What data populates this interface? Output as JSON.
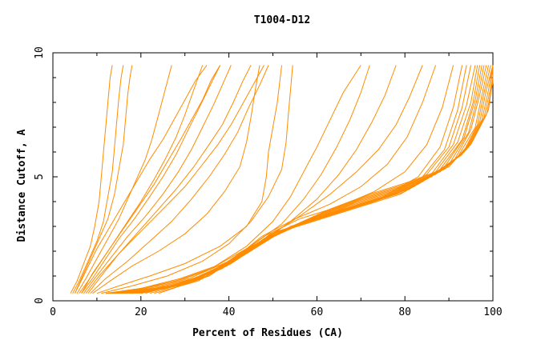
{
  "chart_data": {
    "type": "line",
    "title": "T1004-D12",
    "xlabel": "Percent of Residues (CA)",
    "ylabel": "Distance Cutoff, A",
    "xlim": [
      0,
      100
    ],
    "ylim": [
      0,
      10
    ],
    "x_ticks": [
      "0",
      "20",
      "40",
      "60",
      "80",
      "100"
    ],
    "y_ticks": [
      "0",
      "5",
      "10"
    ],
    "grid": false,
    "legend": "none",
    "series_color": "#ff8c00",
    "series": [
      {
        "x": [
          4.0,
          5.5,
          7.0,
          8.5,
          9.5,
          10.5,
          11.0,
          11.5,
          12.0,
          12.5,
          13.0,
          13.5
        ],
        "y": [
          0.3,
          0.8,
          1.5,
          2.2,
          3.0,
          4.0,
          5.0,
          6.0,
          7.0,
          8.0,
          9.0,
          9.5
        ]
      },
      {
        "x": [
          4.5,
          6.0,
          8.0,
          10.0,
          11.5,
          12.5,
          13.5,
          14.0,
          14.5,
          15.0,
          15.5,
          16.0
        ],
        "y": [
          0.3,
          0.8,
          1.6,
          2.4,
          3.2,
          4.2,
          5.2,
          6.2,
          7.2,
          8.2,
          9.0,
          9.5
        ]
      },
      {
        "x": [
          5.0,
          6.5,
          8.5,
          10.5,
          12.5,
          14.0,
          15.0,
          16.0,
          16.5,
          17.0,
          17.5,
          18.0
        ],
        "y": [
          0.3,
          0.9,
          1.7,
          2.5,
          3.3,
          4.3,
          5.3,
          6.3,
          7.3,
          8.3,
          9.0,
          9.5
        ]
      },
      {
        "x": [
          5.5,
          7.5,
          10.0,
          12.5,
          15.0,
          17.0,
          19.0,
          21.0,
          22.5,
          24.0,
          25.5,
          27.0
        ],
        "y": [
          0.3,
          0.9,
          1.7,
          2.5,
          3.3,
          4.1,
          4.9,
          5.7,
          6.5,
          7.5,
          8.5,
          9.5
        ]
      },
      {
        "x": [
          6.0,
          8.0,
          11.0,
          14.0,
          17.0,
          20.0,
          23.0,
          25.5,
          28.0,
          30.0,
          32.0,
          34.0
        ],
        "y": [
          0.3,
          0.8,
          1.6,
          2.4,
          3.2,
          4.0,
          4.9,
          5.7,
          6.6,
          7.5,
          8.5,
          9.5
        ]
      },
      {
        "x": [
          6.5,
          9.0,
          12.0,
          15.0,
          18.5,
          22.0,
          25.0,
          28.0,
          30.5,
          33.0,
          35.5,
          38.0
        ],
        "y": [
          0.3,
          0.9,
          1.7,
          2.5,
          3.3,
          4.2,
          5.0,
          5.9,
          6.8,
          7.7,
          8.6,
          9.5
        ]
      },
      {
        "x": [
          7.0,
          9.5,
          13.0,
          17.0,
          21.0,
          25.0,
          28.5,
          31.5,
          34.0,
          36.5,
          38.5,
          40.5
        ],
        "y": [
          0.3,
          0.9,
          1.7,
          2.6,
          3.4,
          4.3,
          5.2,
          6.1,
          7.0,
          7.9,
          8.7,
          9.5
        ]
      },
      {
        "x": [
          7.5,
          10.5,
          14.5,
          19.0,
          23.5,
          28.0,
          32.0,
          35.5,
          38.5,
          41.0,
          43.0,
          45.0
        ],
        "y": [
          0.3,
          1.0,
          1.8,
          2.7,
          3.6,
          4.5,
          5.4,
          6.3,
          7.1,
          8.0,
          8.8,
          9.5
        ]
      },
      {
        "x": [
          8.0,
          11.0,
          15.0,
          20.0,
          25.0,
          30.0,
          34.0,
          37.5,
          40.5,
          43.0,
          45.5,
          48.0
        ],
        "y": [
          0.3,
          1.0,
          1.9,
          2.8,
          3.7,
          4.6,
          5.5,
          6.3,
          7.1,
          7.9,
          8.7,
          9.5
        ]
      },
      {
        "x": [
          6.5,
          9.0,
          12.5,
          16.0,
          19.5,
          23.0,
          26.0,
          29.0,
          31.5,
          34.0,
          36.0,
          38.0
        ],
        "y": [
          0.3,
          1.1,
          2.0,
          2.9,
          3.8,
          4.7,
          5.6,
          6.5,
          7.3,
          8.1,
          8.9,
          9.5
        ]
      },
      {
        "x": [
          5.0,
          7.5,
          10.0,
          13.0,
          16.0,
          19.0,
          22.0,
          25.0,
          27.5,
          30.0,
          32.5,
          35.0
        ],
        "y": [
          0.3,
          1.2,
          2.1,
          3.0,
          3.9,
          4.8,
          5.7,
          6.5,
          7.3,
          8.1,
          8.9,
          9.5
        ]
      },
      {
        "x": [
          8.5,
          12.0,
          17.0,
          22.0,
          27.0,
          31.5,
          35.5,
          39.0,
          42.0,
          44.5,
          47.0,
          49.0
        ],
        "y": [
          0.3,
          0.9,
          1.6,
          2.4,
          3.2,
          4.1,
          5.0,
          5.9,
          6.8,
          7.8,
          8.7,
          9.5
        ]
      },
      {
        "x": [
          9.0,
          13.0,
          18.0,
          24.0,
          30.0,
          35.0,
          39.0,
          42.5,
          44.0,
          45.0,
          46.0,
          47.0
        ],
        "y": [
          0.3,
          0.8,
          1.4,
          2.0,
          2.7,
          3.5,
          4.4,
          5.4,
          6.4,
          7.4,
          8.5,
          9.5
        ]
      },
      {
        "x": [
          10.0,
          15.0,
          22.0,
          30.0,
          38.0,
          44.0,
          47.5,
          48.5,
          49.0,
          50.0,
          51.0,
          52.0
        ],
        "y": [
          0.3,
          0.6,
          1.0,
          1.5,
          2.2,
          3.0,
          4.0,
          5.0,
          6.0,
          7.0,
          8.0,
          9.5
        ]
      },
      {
        "x": [
          11.0,
          18.0,
          26.0,
          34.0,
          40.0,
          45.0,
          49.0,
          52.0,
          53.0,
          53.5,
          54.0,
          54.5
        ],
        "y": [
          0.3,
          0.6,
          1.0,
          1.6,
          2.3,
          3.2,
          4.2,
          5.3,
          6.4,
          7.5,
          8.5,
          9.5
        ]
      },
      {
        "x": [
          12.0,
          20.0,
          28.0,
          36.0,
          44.0,
          50.0,
          54.0,
          57.0,
          60.0,
          63.0,
          66.0,
          70.0
        ],
        "y": [
          0.3,
          0.5,
          0.8,
          1.3,
          2.2,
          3.2,
          4.2,
          5.2,
          6.2,
          7.3,
          8.4,
          9.5
        ]
      },
      {
        "x": [
          12.0,
          20.0,
          29.0,
          37.0,
          45.0,
          52.0,
          57.0,
          61.0,
          64.5,
          67.5,
          70.0,
          72.0
        ],
        "y": [
          0.3,
          0.5,
          0.9,
          1.4,
          2.2,
          3.1,
          4.1,
          5.1,
          6.2,
          7.3,
          8.4,
          9.5
        ]
      },
      {
        "x": [
          12.5,
          21.0,
          30.0,
          39.0,
          47.0,
          54.0,
          60.0,
          65.0,
          69.0,
          72.5,
          75.5,
          78.0
        ],
        "y": [
          0.3,
          0.5,
          0.9,
          1.5,
          2.3,
          3.2,
          4.1,
          5.1,
          6.1,
          7.2,
          8.3,
          9.5
        ]
      },
      {
        "x": [
          13.0,
          22.0,
          31.0,
          40.0,
          48.0,
          56.0,
          63.0,
          69.0,
          74.0,
          78.0,
          81.0,
          84.0
        ],
        "y": [
          0.3,
          0.5,
          0.9,
          1.6,
          2.5,
          3.4,
          4.3,
          5.2,
          6.1,
          7.1,
          8.2,
          9.5
        ]
      },
      {
        "x": [
          13.5,
          23.0,
          32.0,
          40.5,
          47.5,
          55.0,
          63.0,
          70.0,
          76.0,
          80.5,
          84.0,
          87.0
        ],
        "y": [
          0.3,
          0.5,
          0.9,
          1.6,
          2.6,
          3.3,
          3.9,
          4.6,
          5.5,
          6.6,
          8.0,
          9.5
        ]
      },
      {
        "x": [
          14.0,
          24.0,
          33.0,
          41.0,
          48.0,
          56.0,
          65.0,
          73.0,
          80.0,
          85.0,
          88.5,
          91.0
        ],
        "y": [
          0.3,
          0.5,
          0.9,
          1.7,
          2.6,
          3.3,
          3.8,
          4.4,
          5.2,
          6.3,
          7.8,
          9.5
        ]
      },
      {
        "x": [
          14.5,
          25.0,
          34.0,
          42.0,
          49.0,
          57.0,
          66.0,
          75.0,
          83.0,
          88.0,
          91.0,
          93.0
        ],
        "y": [
          0.3,
          0.5,
          0.9,
          1.8,
          2.6,
          3.2,
          3.7,
          4.2,
          5.0,
          6.2,
          7.8,
          9.5
        ]
      },
      {
        "x": [
          15.0,
          25.5,
          35.0,
          42.5,
          49.5,
          58.0,
          67.0,
          76.0,
          84.0,
          89.0,
          92.0,
          94.0
        ],
        "y": [
          0.3,
          0.5,
          1.0,
          1.8,
          2.7,
          3.2,
          3.7,
          4.2,
          5.0,
          6.1,
          7.7,
          9.5
        ]
      },
      {
        "x": [
          15.5,
          26.0,
          35.5,
          43.0,
          50.0,
          59.0,
          68.0,
          77.0,
          85.0,
          90.0,
          93.0,
          95.0
        ],
        "y": [
          0.3,
          0.5,
          1.0,
          1.9,
          2.7,
          3.3,
          3.8,
          4.3,
          5.1,
          6.2,
          7.8,
          9.5
        ]
      },
      {
        "x": [
          16.0,
          26.5,
          36.0,
          43.5,
          51.0,
          60.0,
          69.0,
          78.0,
          86.0,
          91.0,
          94.0,
          96.0
        ],
        "y": [
          0.3,
          0.6,
          1.1,
          2.0,
          2.8,
          3.3,
          3.8,
          4.3,
          5.1,
          6.3,
          7.9,
          9.5
        ]
      },
      {
        "x": [
          16.5,
          27.0,
          36.5,
          44.0,
          52.0,
          61.0,
          70.0,
          79.0,
          87.0,
          92.0,
          95.0,
          96.5
        ],
        "y": [
          0.3,
          0.6,
          1.2,
          2.1,
          2.8,
          3.3,
          3.8,
          4.3,
          5.2,
          6.4,
          8.0,
          9.5
        ]
      },
      {
        "x": [
          17.0,
          27.5,
          37.0,
          45.0,
          53.0,
          62.0,
          71.0,
          80.0,
          88.0,
          93.0,
          95.5,
          97.0
        ],
        "y": [
          0.3,
          0.6,
          1.2,
          2.1,
          2.9,
          3.4,
          3.9,
          4.4,
          5.3,
          6.5,
          8.0,
          9.5
        ]
      },
      {
        "x": [
          17.5,
          28.0,
          38.0,
          46.0,
          54.0,
          63.0,
          72.0,
          81.0,
          89.0,
          93.5,
          96.0,
          97.5
        ],
        "y": [
          0.3,
          0.6,
          1.3,
          2.2,
          3.0,
          3.5,
          4.0,
          4.5,
          5.4,
          6.6,
          8.1,
          9.5
        ]
      },
      {
        "x": [
          18.0,
          28.5,
          38.5,
          46.5,
          55.0,
          64.0,
          73.0,
          82.0,
          90.0,
          94.5,
          96.5,
          98.0
        ],
        "y": [
          0.3,
          0.6,
          1.3,
          2.3,
          3.0,
          3.5,
          4.0,
          4.6,
          5.5,
          6.8,
          8.2,
          9.5
        ]
      },
      {
        "x": [
          18.5,
          29.0,
          39.0,
          47.0,
          56.0,
          65.0,
          74.0,
          83.0,
          91.0,
          95.0,
          97.0,
          98.5
        ],
        "y": [
          0.3,
          0.7,
          1.4,
          2.3,
          3.1,
          3.6,
          4.1,
          4.7,
          5.6,
          6.9,
          8.3,
          9.5
        ]
      },
      {
        "x": [
          19.0,
          29.5,
          39.5,
          47.5,
          57.0,
          66.0,
          75.0,
          84.0,
          92.0,
          96.0,
          97.5,
          99.0
        ],
        "y": [
          0.3,
          0.7,
          1.4,
          2.4,
          3.2,
          3.7,
          4.2,
          4.8,
          5.8,
          7.0,
          8.3,
          9.5
        ]
      },
      {
        "x": [
          19.5,
          30.0,
          40.0,
          48.0,
          58.0,
          67.0,
          76.0,
          85.0,
          93.0,
          96.5,
          98.0,
          99.5
        ],
        "y": [
          0.3,
          0.7,
          1.5,
          2.5,
          3.2,
          3.8,
          4.3,
          4.9,
          5.9,
          7.1,
          8.4,
          9.5
        ]
      },
      {
        "x": [
          20.0,
          30.5,
          40.5,
          49.0,
          59.0,
          68.0,
          77.0,
          86.0,
          93.5,
          97.0,
          98.5,
          100.0
        ],
        "y": [
          0.3,
          0.7,
          1.5,
          2.5,
          3.3,
          3.9,
          4.4,
          5.0,
          6.0,
          7.2,
          8.5,
          9.5
        ]
      },
      {
        "x": [
          21.0,
          31.0,
          41.0,
          50.0,
          60.0,
          69.0,
          78.0,
          87.0,
          94.0,
          97.5,
          99.0,
          100.0
        ],
        "y": [
          0.3,
          0.8,
          1.6,
          2.6,
          3.4,
          4.0,
          4.5,
          5.1,
          6.1,
          7.3,
          8.5,
          9.5
        ]
      },
      {
        "x": [
          22.0,
          32.0,
          42.0,
          51.0,
          61.0,
          70.0,
          79.0,
          88.0,
          94.5,
          98.0,
          99.5,
          100.0
        ],
        "y": [
          0.3,
          0.8,
          1.7,
          2.7,
          3.5,
          4.1,
          4.6,
          5.2,
          6.2,
          7.4,
          8.6,
          9.5
        ]
      },
      {
        "x": [
          23.0,
          33.0,
          43.0,
          52.0,
          62.0,
          71.0,
          80.0,
          89.0,
          95.0,
          98.5,
          100.0,
          100.0
        ],
        "y": [
          0.3,
          0.8,
          1.8,
          2.8,
          3.6,
          4.2,
          4.7,
          5.3,
          6.3,
          7.5,
          8.8,
          9.5
        ]
      },
      {
        "x": [
          24.0,
          34.0,
          44.0,
          53.0,
          63.0,
          72.0,
          81.0,
          90.0,
          95.5,
          99.0,
          100.0,
          100.0
        ],
        "y": [
          0.3,
          0.9,
          1.9,
          2.9,
          3.7,
          4.3,
          4.8,
          5.4,
          6.5,
          7.7,
          9.0,
          9.5
        ]
      }
    ]
  }
}
